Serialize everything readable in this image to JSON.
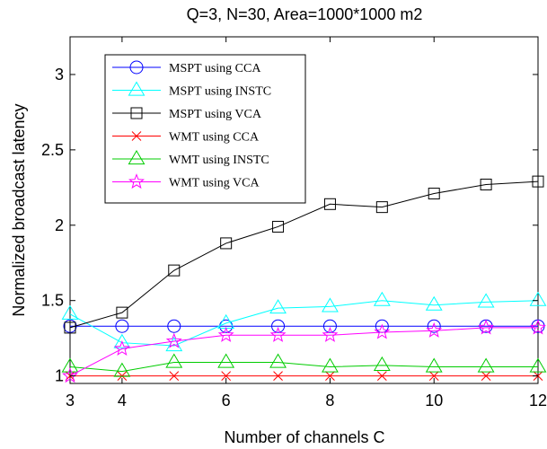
{
  "chart_data": {
    "type": "line",
    "title": "Q=3, N=30, Area=1000*1000 m2",
    "xlabel": "Number of channels C",
    "ylabel": "Normalized broadcast latency",
    "xlim": [
      3,
      12
    ],
    "ylim": [
      0.95,
      3.25
    ],
    "xticks": [
      4,
      6,
      8,
      10,
      12
    ],
    "yticks": [
      1,
      1.5,
      2,
      2.5,
      3
    ],
    "grid": false,
    "legend_position": "top-left",
    "x": [
      3,
      4,
      5,
      6,
      7,
      8,
      9,
      10,
      11,
      12
    ],
    "series": [
      {
        "name": "MSPT using CCA",
        "color": "#0000ff",
        "marker": "circle",
        "values": [
          1.33,
          1.33,
          1.33,
          1.33,
          1.33,
          1.33,
          1.33,
          1.33,
          1.33,
          1.33
        ]
      },
      {
        "name": "MSPT using INSTC",
        "color": "#00ffff",
        "marker": "triangle",
        "values": [
          1.41,
          1.22,
          1.2,
          1.35,
          1.45,
          1.46,
          1.5,
          1.47,
          1.49,
          1.5
        ]
      },
      {
        "name": "MSPT using VCA",
        "color": "#000000",
        "marker": "square",
        "values": [
          1.32,
          1.42,
          1.7,
          1.88,
          1.99,
          2.14,
          2.12,
          2.21,
          2.27,
          2.29
        ]
      },
      {
        "name": "WMT using CCA",
        "color": "#ff0000",
        "marker": "x",
        "values": [
          1.0,
          1.0,
          1.0,
          1.0,
          1.0,
          1.0,
          1.0,
          1.0,
          1.0,
          1.0
        ]
      },
      {
        "name": "WMT using INSTC",
        "color": "#00cc00",
        "marker": "triangle",
        "values": [
          1.06,
          1.03,
          1.09,
          1.09,
          1.09,
          1.06,
          1.07,
          1.06,
          1.06,
          1.06
        ]
      },
      {
        "name": "WMT using VCA",
        "color": "#ff00ff",
        "marker": "star",
        "values": [
          1.0,
          1.18,
          1.23,
          1.27,
          1.27,
          1.27,
          1.29,
          1.3,
          1.32,
          1.32
        ]
      }
    ]
  }
}
